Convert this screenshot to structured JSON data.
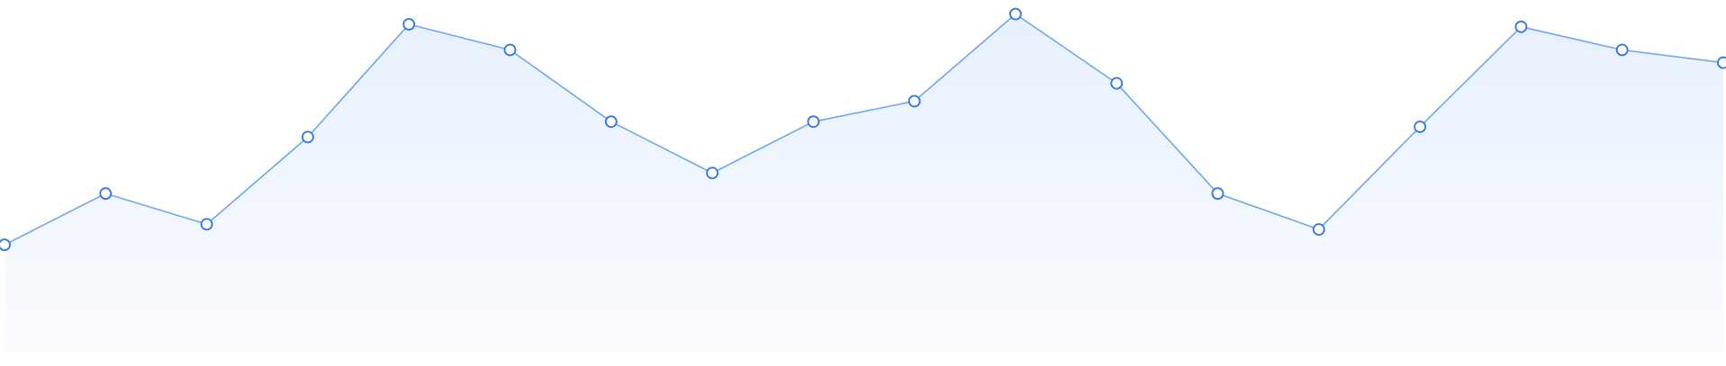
{
  "chart_data": {
    "type": "area",
    "x": [
      1,
      2,
      3,
      4,
      5,
      6,
      7,
      8,
      9,
      10,
      11,
      12,
      13,
      14,
      15,
      16,
      17,
      18
    ],
    "values": [
      42,
      62,
      50,
      84,
      128,
      118,
      90,
      70,
      90,
      98,
      132,
      105,
      62,
      48,
      88,
      127,
      118,
      113
    ],
    "ylim": [
      0,
      135
    ],
    "title": "",
    "xlabel": "",
    "ylabel": "",
    "grid": false,
    "legend": "none",
    "colors": {
      "line": "#6fa6ee",
      "marker_stroke": "#2f74e8",
      "marker_fill": "#ffffff",
      "fill_top": "#e6f0fd",
      "fill_bottom": "#fbfcff"
    }
  }
}
